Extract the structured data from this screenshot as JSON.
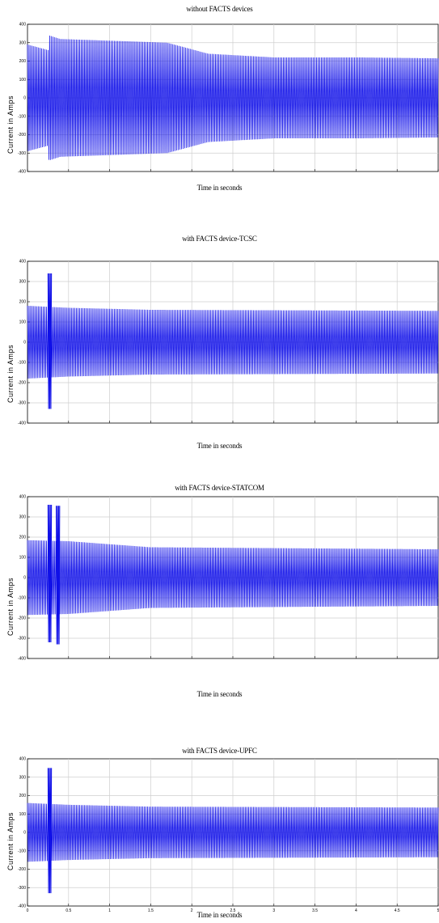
{
  "figure": {
    "line_color": "#1010e8",
    "grid_color": "#cfcfcf"
  },
  "chart_data": [
    {
      "type": "line",
      "title": "without FACTS devices",
      "xlabel": "Time in seconds",
      "ylabel": "Current in Amps",
      "yticks": [
        "400",
        "300",
        "200",
        "100",
        "0",
        "-100",
        "-200",
        "-300",
        "-400"
      ],
      "ylim": [
        -400,
        400
      ],
      "x_divisions": 10,
      "grid": true,
      "series": [
        {
          "waveform": "oscillating envelope",
          "envelope": [
            {
              "t": 0.0,
              "amp": 290
            },
            {
              "t": 0.25,
              "amp": 260
            },
            {
              "t": 0.26,
              "amp": 340
            },
            {
              "t": 0.4,
              "amp": 320
            },
            {
              "t": 1.7,
              "amp": 300
            },
            {
              "t": 2.2,
              "amp": 240
            },
            {
              "t": 3.0,
              "amp": 220
            },
            {
              "t": 4.0,
              "amp": 220
            },
            {
              "t": 5.0,
              "amp": 215
            }
          ],
          "spikes": []
        }
      ]
    },
    {
      "type": "line",
      "title": "with FACTS device-TCSC",
      "xlabel": "Time in seconds",
      "ylabel": "Current in Amps",
      "yticks": [
        "400",
        "300",
        "200",
        "100",
        "0",
        "-100",
        "-200",
        "-300",
        "-400"
      ],
      "ylim": [
        -400,
        400
      ],
      "x_divisions": 10,
      "grid": true,
      "series": [
        {
          "waveform": "oscillating envelope",
          "envelope": [
            {
              "t": 0.0,
              "amp": 180
            },
            {
              "t": 0.5,
              "amp": 170
            },
            {
              "t": 1.5,
              "amp": 160
            },
            {
              "t": 5.0,
              "amp": 155
            }
          ],
          "spikes": [
            {
              "t": 0.27,
              "max": 340,
              "min": -330
            }
          ]
        }
      ]
    },
    {
      "type": "line",
      "title": "with FACTS device-STATCOM",
      "xlabel": "Time in seconds",
      "ylabel": "Current in Amps",
      "yticks": [
        "400",
        "300",
        "200",
        "100",
        "0",
        "-100",
        "-200",
        "-300",
        "-400"
      ],
      "ylim": [
        -400,
        400
      ],
      "x_divisions": 10,
      "grid": true,
      "series": [
        {
          "waveform": "oscillating envelope",
          "envelope": [
            {
              "t": 0.0,
              "amp": 185
            },
            {
              "t": 0.5,
              "amp": 180
            },
            {
              "t": 1.5,
              "amp": 150
            },
            {
              "t": 5.0,
              "amp": 140
            }
          ],
          "spikes": [
            {
              "t": 0.27,
              "max": 360,
              "min": -320
            },
            {
              "t": 0.37,
              "max": 355,
              "min": -330
            }
          ]
        }
      ]
    },
    {
      "type": "line",
      "title": "with FACTS device-UPFC",
      "xlabel": "Time in seconds",
      "ylabel": "Current in Amps",
      "yticks": [
        "400",
        "300",
        "200",
        "100",
        "0",
        "-100",
        "-200",
        "-300",
        "-400"
      ],
      "ylim": [
        -400,
        400
      ],
      "xticks": [
        "0",
        "0.5",
        "1",
        "1.5",
        "2",
        "2.5",
        "3",
        "3.5",
        "4",
        "4.5",
        "5"
      ],
      "x_divisions": 10,
      "grid": true,
      "series": [
        {
          "waveform": "oscillating envelope",
          "envelope": [
            {
              "t": 0.0,
              "amp": 160
            },
            {
              "t": 0.5,
              "amp": 150
            },
            {
              "t": 1.5,
              "amp": 140
            },
            {
              "t": 5.0,
              "amp": 135
            }
          ],
          "spikes": [
            {
              "t": 0.27,
              "max": 350,
              "min": -330
            }
          ]
        }
      ]
    }
  ]
}
